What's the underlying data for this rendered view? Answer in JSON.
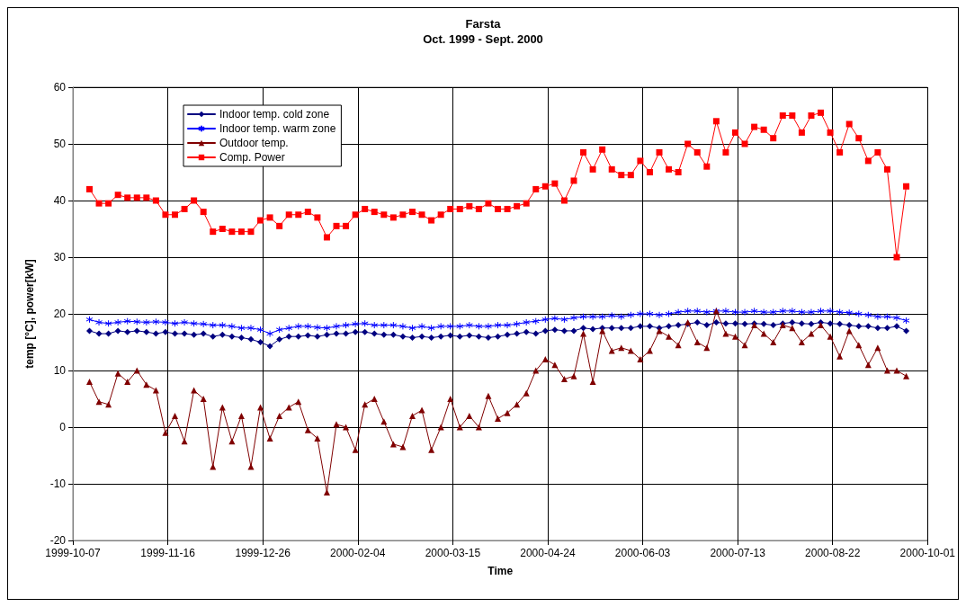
{
  "chart_data": {
    "type": "line",
    "title": "Farsta",
    "subtitle": "Oct. 1999 - Sept. 2000",
    "xlabel": "Time",
    "ylabel": "temp [°C], power[kW]",
    "x": [
      "1999-10-14",
      "1999-10-18",
      "1999-10-22",
      "1999-10-26",
      "1999-10-30",
      "1999-11-03",
      "1999-11-07",
      "1999-11-11",
      "1999-11-15",
      "1999-11-19",
      "1999-11-23",
      "1999-11-27",
      "1999-12-01",
      "1999-12-05",
      "1999-12-09",
      "1999-12-13",
      "1999-12-17",
      "1999-12-21",
      "1999-12-25",
      "1999-12-29",
      "2000-01-02",
      "2000-01-06",
      "2000-01-10",
      "2000-01-14",
      "2000-01-18",
      "2000-01-22",
      "2000-01-26",
      "2000-01-30",
      "2000-02-03",
      "2000-02-07",
      "2000-02-11",
      "2000-02-15",
      "2000-02-19",
      "2000-02-23",
      "2000-02-27",
      "2000-03-02",
      "2000-03-06",
      "2000-03-10",
      "2000-03-14",
      "2000-03-18",
      "2000-03-22",
      "2000-03-26",
      "2000-03-30",
      "2000-04-03",
      "2000-04-07",
      "2000-04-11",
      "2000-04-15",
      "2000-04-19",
      "2000-04-23",
      "2000-04-27",
      "2000-05-01",
      "2000-05-05",
      "2000-05-09",
      "2000-05-13",
      "2000-05-17",
      "2000-05-21",
      "2000-05-25",
      "2000-05-29",
      "2000-06-02",
      "2000-06-06",
      "2000-06-10",
      "2000-06-14",
      "2000-06-18",
      "2000-06-22",
      "2000-06-26",
      "2000-06-30",
      "2000-07-04",
      "2000-07-08",
      "2000-07-12",
      "2000-07-16",
      "2000-07-20",
      "2000-07-24",
      "2000-07-28",
      "2000-08-01",
      "2000-08-05",
      "2000-08-09",
      "2000-08-13",
      "2000-08-17",
      "2000-08-21",
      "2000-08-25",
      "2000-08-29",
      "2000-09-02",
      "2000-09-06",
      "2000-09-10",
      "2000-09-14",
      "2000-09-18",
      "2000-09-22"
    ],
    "series": [
      {
        "name": "Indoor temp. cold zone",
        "color": "#000080",
        "marker": "diamond",
        "values": [
          17,
          16.5,
          16.5,
          17,
          16.8,
          17,
          16.8,
          16.5,
          16.8,
          16.5,
          16.5,
          16.3,
          16.5,
          16,
          16.3,
          16,
          15.8,
          15.5,
          15,
          14.3,
          15.5,
          16,
          16,
          16.2,
          16,
          16.3,
          16.5,
          16.5,
          16.8,
          16.8,
          16.5,
          16.3,
          16.3,
          16,
          15.8,
          16,
          15.8,
          16,
          16.2,
          16,
          16.2,
          16,
          15.8,
          16,
          16.3,
          16.5,
          16.8,
          16.5,
          17,
          17.2,
          17,
          17,
          17.5,
          17.3,
          17.5,
          17.5,
          17.5,
          17.5,
          17.8,
          17.8,
          17.5,
          17.8,
          18,
          18.2,
          18.5,
          18,
          18.5,
          18.3,
          18.3,
          18.2,
          18.3,
          18.2,
          18,
          18.3,
          18.5,
          18.3,
          18.2,
          18.5,
          18.3,
          18.2,
          18,
          17.8,
          17.8,
          17.5,
          17.5,
          17.8,
          17
        ]
      },
      {
        "name": "Indoor temp. warm zone",
        "color": "#0000ff",
        "marker": "cross",
        "values": [
          19,
          18.5,
          18.3,
          18.5,
          18.7,
          18.6,
          18.5,
          18.6,
          18.5,
          18.3,
          18.5,
          18.3,
          18.2,
          18,
          18,
          17.8,
          17.5,
          17.5,
          17.2,
          16.5,
          17.2,
          17.5,
          17.8,
          17.8,
          17.6,
          17.5,
          17.8,
          18,
          18.2,
          18.3,
          18,
          18,
          18,
          17.8,
          17.5,
          17.8,
          17.5,
          17.8,
          17.8,
          17.8,
          18,
          17.8,
          17.8,
          18,
          18,
          18.2,
          18.5,
          18.7,
          19,
          19.2,
          19,
          19.3,
          19.5,
          19.5,
          19.5,
          19.7,
          19.5,
          19.8,
          20,
          20,
          19.8,
          20,
          20.3,
          20.5,
          20.5,
          20.3,
          20.5,
          20.5,
          20.3,
          20.3,
          20.5,
          20.3,
          20.3,
          20.5,
          20.5,
          20.3,
          20.3,
          20.5,
          20.5,
          20.3,
          20.2,
          20,
          19.8,
          19.5,
          19.5,
          19.3,
          18.8
        ]
      },
      {
        "name": "Outdoor temp.",
        "color": "#800000",
        "marker": "triangle",
        "values": [
          8,
          4.5,
          4,
          9.5,
          8,
          10,
          7.5,
          6.5,
          -1,
          2,
          -2.5,
          6.5,
          5,
          -7,
          3.5,
          -2.5,
          2,
          -7,
          3.5,
          -2,
          2,
          3.5,
          4.5,
          -0.5,
          -2,
          -11.5,
          0.5,
          0,
          -4,
          4,
          5,
          1,
          -3,
          -3.5,
          2,
          3,
          -4,
          0,
          5,
          0,
          2,
          0,
          5.5,
          1.5,
          2.5,
          4,
          6,
          10,
          12,
          11,
          8.5,
          9,
          16.5,
          8,
          17,
          13.5,
          14,
          13.5,
          12,
          13.5,
          17,
          16,
          14.5,
          18.5,
          15,
          14,
          20.5,
          16.5,
          16,
          14.5,
          18,
          16.5,
          15,
          18,
          17.5,
          15,
          16.5,
          18,
          16,
          12.5,
          17,
          14.5,
          11,
          14,
          10,
          10,
          9
        ]
      },
      {
        "name": "Comp. Power",
        "color": "#ff0000",
        "marker": "square",
        "values": [
          42,
          39.5,
          39.5,
          41,
          40.5,
          40.5,
          40.5,
          40,
          37.5,
          37.5,
          38.5,
          40,
          38,
          34.5,
          35,
          34.5,
          34.5,
          34.5,
          36.5,
          37,
          35.5,
          37.5,
          37.5,
          38,
          37,
          33.5,
          35.5,
          35.5,
          37.5,
          38.5,
          38,
          37.5,
          37,
          37.5,
          38,
          37.5,
          36.5,
          37.5,
          38.5,
          38.5,
          39,
          38.5,
          39.5,
          38.5,
          38.5,
          39,
          39.5,
          42,
          42.5,
          43,
          40,
          43.5,
          48.5,
          45.5,
          49,
          45.5,
          44.5,
          44.5,
          47,
          45,
          48.5,
          45.5,
          45,
          50,
          48.5,
          46,
          54,
          48.5,
          52,
          50,
          53,
          52.5,
          51,
          55,
          55,
          52,
          55,
          55.5,
          52,
          48.5,
          53.5,
          51,
          47,
          48.5,
          45.5,
          30,
          42.5
        ]
      }
    ],
    "xlim": [
      "1999-10-07",
      "2000-10-01"
    ],
    "xticks": [
      "1999-10-07",
      "1999-11-16",
      "1999-12-26",
      "2000-02-04",
      "2000-03-15",
      "2000-04-24",
      "2000-06-03",
      "2000-07-13",
      "2000-08-22",
      "2000-10-01"
    ],
    "ylim": [
      -20,
      60
    ],
    "yticks": [
      -20,
      -10,
      0,
      10,
      20,
      30,
      40,
      50,
      60
    ],
    "grid": true,
    "legend": "top left",
    "line_style": "solid"
  }
}
